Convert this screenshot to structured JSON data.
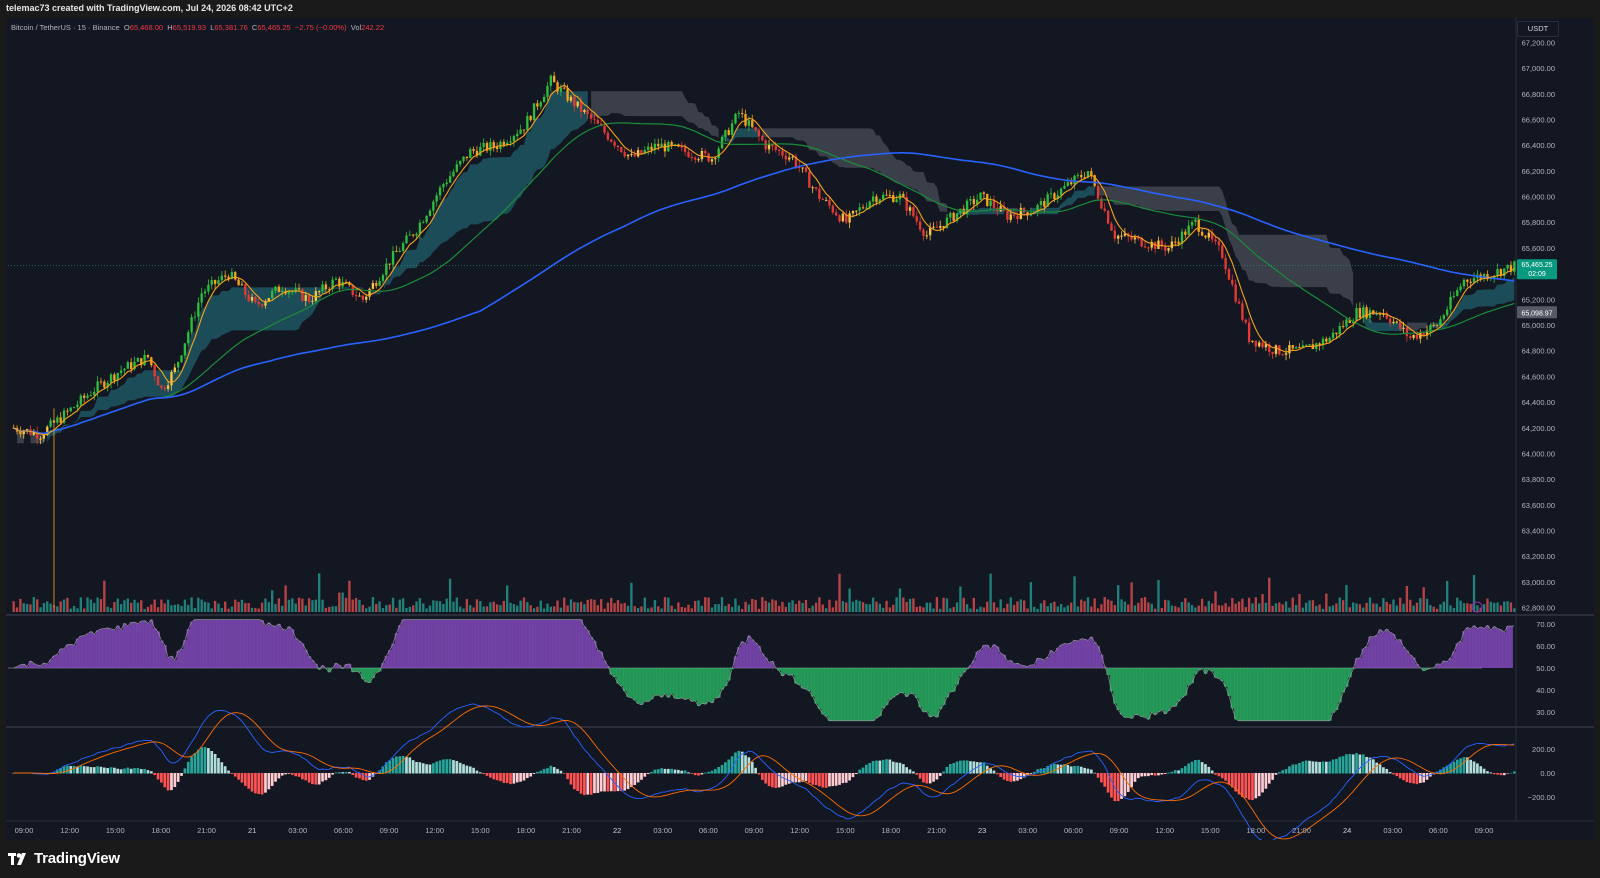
{
  "header": {
    "caption": "telemac73 created with TradingView.com, Jul 24, 2026 08:42 UTC+2"
  },
  "legend": {
    "symbol": "Bitcoin / TetherUS · 15 · Binance",
    "open_label": "O",
    "open": "65,468.00",
    "high_label": "H",
    "high": "65,519.93",
    "low_label": "L",
    "low": "65,381.76",
    "close_label": "C",
    "close": "65,465.25",
    "change": "−2.75 (−0.00%)",
    "vol_label": "Vol",
    "vol": "242.22"
  },
  "price_axis": {
    "unit": "USDT",
    "ticks": [
      "67,200.00",
      "67,000.00",
      "66,800.00",
      "66,600.00",
      "66,400.00",
      "66,200.00",
      "66,000.00",
      "65,800.00",
      "65,600.00",
      "65,200.00",
      "65,000.00",
      "64,800.00",
      "64,600.00",
      "64,400.00",
      "64,200.00",
      "64,000.00",
      "63,800.00",
      "63,600.00",
      "63,400.00",
      "63,200.00",
      "63,000.00",
      "62,800.00"
    ],
    "last_price": "65,465.25",
    "countdown": "02:09",
    "ma_price": "65,098.97"
  },
  "rsi_axis": {
    "ticks": [
      "70.00",
      "60.00",
      "50.00",
      "40.00",
      "30.00"
    ]
  },
  "macd_axis": {
    "ticks": [
      "200.00",
      "0.00",
      "−200.00"
    ]
  },
  "time_axis": {
    "ticks": [
      "09:00",
      "12:00",
      "15:00",
      "18:00",
      "21:00",
      "21",
      "03:00",
      "06:00",
      "09:00",
      "12:00",
      "15:00",
      "18:00",
      "21:00",
      "22",
      "03:00",
      "06:00",
      "09:00",
      "12:00",
      "15:00",
      "18:00",
      "21:00",
      "23",
      "03:00",
      "06:00",
      "09:00",
      "12:00",
      "15:00",
      "18:00",
      "21:00",
      "24",
      "03:00",
      "06:00",
      "09:00"
    ]
  },
  "branding": {
    "logo_text": "TradingView"
  },
  "colors": {
    "up": "#26a69a",
    "down": "#ef5350",
    "bull_candle": "#2ebd3c",
    "bear_candle": "#e53935",
    "orange": "#f7a21b",
    "ma_blue": "#2962ff",
    "ma_green": "#1b8c3a",
    "cloud_teal": "#1f5f6b",
    "cloud_gray": "#4a4d57",
    "rsi_purple": "#8e4fc9",
    "rsi_green": "#2bbf6a"
  },
  "chart_data": {
    "type": "candlestick",
    "symbol": "Bitcoin / TetherUS",
    "interval": "15",
    "exchange": "Binance",
    "ylim": [
      62750,
      67250
    ],
    "x_labels": [
      "09:00",
      "12:00",
      "15:00",
      "18:00",
      "21:00",
      "21",
      "03:00",
      "06:00",
      "09:00",
      "12:00",
      "15:00",
      "18:00",
      "21:00",
      "22",
      "03:00",
      "06:00",
      "09:00",
      "12:00",
      "15:00",
      "18:00",
      "21:00",
      "23",
      "03:00",
      "06:00",
      "09:00",
      "12:00",
      "15:00",
      "18:00",
      "21:00",
      "24",
      "03:00",
      "06:00",
      "09:00"
    ],
    "price_path": [
      [
        0,
        64200
      ],
      [
        8,
        64150
      ],
      [
        16,
        64320
      ],
      [
        24,
        64500
      ],
      [
        32,
        64650
      ],
      [
        40,
        64750
      ],
      [
        44,
        64500
      ],
      [
        48,
        64650
      ],
      [
        56,
        65250
      ],
      [
        64,
        65400
      ],
      [
        72,
        65150
      ],
      [
        80,
        65300
      ],
      [
        88,
        65200
      ],
      [
        96,
        65350
      ],
      [
        104,
        65200
      ],
      [
        112,
        65500
      ],
      [
        120,
        65750
      ],
      [
        128,
        66100
      ],
      [
        136,
        66350
      ],
      [
        144,
        66400
      ],
      [
        152,
        66550
      ],
      [
        160,
        66900
      ],
      [
        168,
        66700
      ],
      [
        176,
        66500
      ],
      [
        184,
        66300
      ],
      [
        192,
        66400
      ],
      [
        200,
        66350
      ],
      [
        208,
        66300
      ],
      [
        216,
        66650
      ],
      [
        224,
        66400
      ],
      [
        232,
        66300
      ],
      [
        240,
        66000
      ],
      [
        248,
        65800
      ],
      [
        256,
        66000
      ],
      [
        264,
        66000
      ],
      [
        272,
        65700
      ],
      [
        280,
        65850
      ],
      [
        288,
        66000
      ],
      [
        296,
        65850
      ],
      [
        304,
        65900
      ],
      [
        312,
        66050
      ],
      [
        320,
        66200
      ],
      [
        328,
        65700
      ],
      [
        336,
        65650
      ],
      [
        344,
        65600
      ],
      [
        352,
        65800
      ],
      [
        360,
        65550
      ],
      [
        368,
        64900
      ],
      [
        376,
        64800
      ],
      [
        384,
        64800
      ],
      [
        392,
        64900
      ],
      [
        400,
        65100
      ],
      [
        408,
        65100
      ],
      [
        416,
        64900
      ],
      [
        424,
        65000
      ],
      [
        432,
        65350
      ],
      [
        440,
        65400
      ],
      [
        448,
        65465
      ]
    ],
    "volume_scale_note": "relative",
    "rsi": {
      "ticks": [
        70,
        60,
        50,
        40,
        30
      ],
      "midline": 50
    },
    "macd": {
      "ticks": [
        200,
        0,
        -200
      ]
    }
  }
}
